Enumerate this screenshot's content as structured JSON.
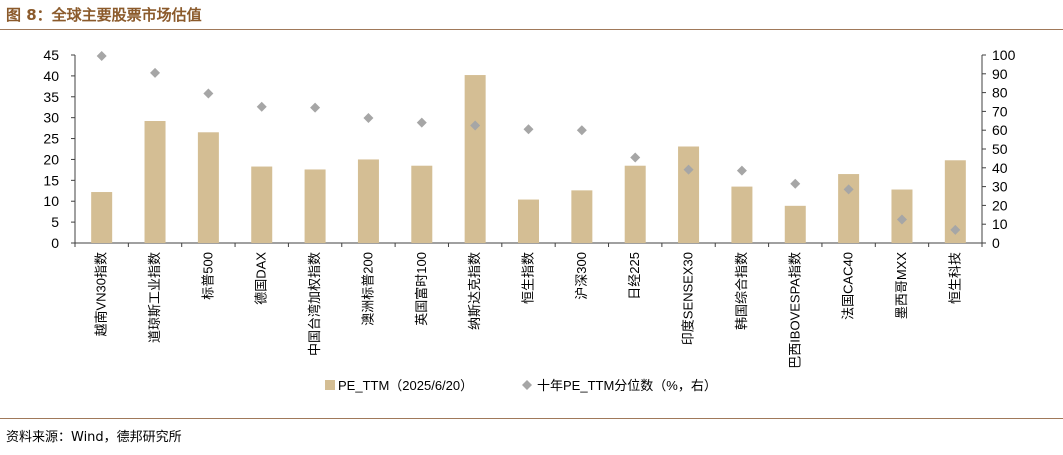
{
  "figure": {
    "title": "图 8：全球主要股票市场估值",
    "source": "资料来源：Wind，德邦研究所"
  },
  "colors": {
    "bar": "#d4be94",
    "marker": "#a6a6a6",
    "title": "#8b5a2b",
    "rule": "#a0795a"
  },
  "chart_data": {
    "type": "bar",
    "categories": [
      "越南VN30指数",
      "道琼斯工业指数",
      "标普500",
      "德国DAX",
      "中国台湾加权指数",
      "澳洲标普200",
      "英国富时100",
      "纳斯达克指数",
      "恒生指数",
      "沪深300",
      "日经225",
      "印度SENSEX30",
      "韩国综合指数",
      "巴西IBOVESPA指数",
      "法国CAC40",
      "墨西哥MXX",
      "恒生科技"
    ],
    "series": [
      {
        "name": "PE_TTM（2025/6/20）",
        "type": "bar",
        "axis": "left",
        "values": [
          12.2,
          29.2,
          26.5,
          18.3,
          17.6,
          20.0,
          18.5,
          40.2,
          10.4,
          12.6,
          18.5,
          23.1,
          13.5,
          8.9,
          16.5,
          12.8,
          19.8
        ]
      },
      {
        "name": "十年PE_TTM分位数（%，右）",
        "type": "scatter",
        "axis": "right",
        "values": [
          99.5,
          90.5,
          79.5,
          72.5,
          72.0,
          66.5,
          64.0,
          62.5,
          60.5,
          60.0,
          45.5,
          39.0,
          38.5,
          31.5,
          28.5,
          12.5,
          7.0
        ]
      }
    ],
    "ylim_left": [
      0,
      45
    ],
    "yticks_left": [
      0,
      5,
      10,
      15,
      20,
      25,
      30,
      35,
      40,
      45
    ],
    "ylim_right": [
      0,
      100
    ],
    "yticks_right": [
      0,
      10,
      20,
      30,
      40,
      50,
      60,
      70,
      80,
      90,
      100
    ],
    "legend_position": "bottom",
    "grid": false
  }
}
